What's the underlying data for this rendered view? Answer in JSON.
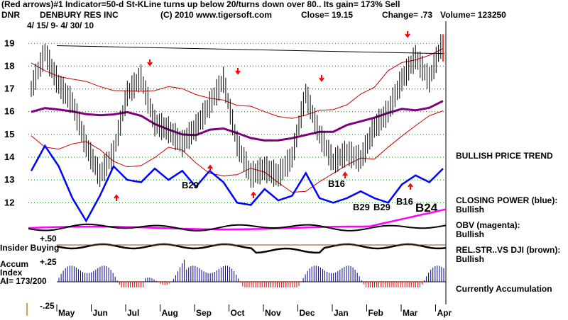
{
  "header": {
    "line1": "(Red arrows)#1 Indicator=50-d St-KLine turns up below 20/turns down over 80.. Its gain= 173% Sell",
    "ticker": "DNR",
    "company": "DENBURY RES INC",
    "copyright": "(C) 2010 www.tigersoft.com",
    "close": "Close=  19.15",
    "change": "Change= .73",
    "volume": "Volume= 123250",
    "dates": "4/ 15/ 9- 4/ 30/ 10"
  },
  "right_panel": {
    "trend": "BULLISH PRICE TREND",
    "closing_power_label": "CLOSING POWER (blue):",
    "closing_power_value": "Bullish",
    "obv_label": "OBV (magenta):",
    "obv_value": "Bullish",
    "relstr_label": "REL.STR..VS DJI (brown):",
    "relstr_value": "Bullish",
    "accum": "Currently Accumulation"
  },
  "indicator_labels": {
    "insider_value": "+.50",
    "insider_label": "Insider Buying",
    "accum_top": "+.25",
    "accum_label1": "Accum",
    "accum_label2": "Index",
    "accum_label3": "AI= 173/200",
    "accum_bottom": "-.25"
  },
  "signals": [
    "B29",
    "B16",
    "B29",
    "B29",
    "B16",
    "B24"
  ],
  "colors": {
    "price": "#000000",
    "bands": "#cc0000",
    "moving_avg": "#800080",
    "closing_power": "#0000ff",
    "obv": "#ff00ff",
    "relstr": "#8b4513",
    "grid": "#008000",
    "arrows": "#ff0000",
    "accum": "#000099"
  },
  "chart_data": {
    "type": "line",
    "title": "DENBURY RES INC",
    "x_ticks": [
      "May",
      "Jun",
      "Jul",
      "Aug",
      "Sep",
      "Oct",
      "Nov",
      "Dec",
      "Jan",
      "Feb",
      "Mar",
      "Apr"
    ],
    "y_ticks": [
      12,
      13,
      14,
      15,
      16,
      17,
      18,
      19
    ],
    "ylim": [
      11.2,
      19.6
    ],
    "grid": true,
    "series": [
      {
        "values": [
          17.0,
          18.6,
          17.2,
          16.4,
          14.5,
          13.2,
          14.2,
          16.8,
          17.5,
          15.5,
          15.2,
          14.6,
          15.3,
          16.3,
          17.4,
          14.6,
          13.2,
          13.5,
          13.2,
          14.0,
          16.8,
          15.0,
          13.8,
          14.2,
          13.9,
          15.3,
          16.0,
          17.4,
          18.4,
          17.4,
          19.15
        ]
      },
      {
        "name": "CLOSING POWER (blue)",
        "values": [
          13.4,
          14.5,
          13.6,
          12.2,
          11.2,
          12.3,
          13.6,
          13.0,
          12.9,
          13.5,
          13.0,
          13.4,
          12.7,
          13.4,
          12.9,
          12.0,
          11.9,
          12.6,
          12.1,
          12.3,
          13.3,
          12.2,
          12.0,
          12.2,
          12.5,
          12.2,
          12.0,
          12.8,
          13.2,
          12.9,
          13.5
        ]
      }
    ],
    "signals": [
      {
        "label": "B29",
        "month": "Aug",
        "price": 13.0
      },
      {
        "label": "B16",
        "month": "Jan",
        "price": 12.5
      },
      {
        "label": "B29",
        "month": "Feb",
        "price": 11.9
      },
      {
        "label": "B29",
        "month": "Feb",
        "price": 11.9
      },
      {
        "label": "B16",
        "month": "Mar",
        "price": 12.1
      },
      {
        "label": "B24",
        "month": "Apr",
        "price": 11.8
      }
    ]
  }
}
